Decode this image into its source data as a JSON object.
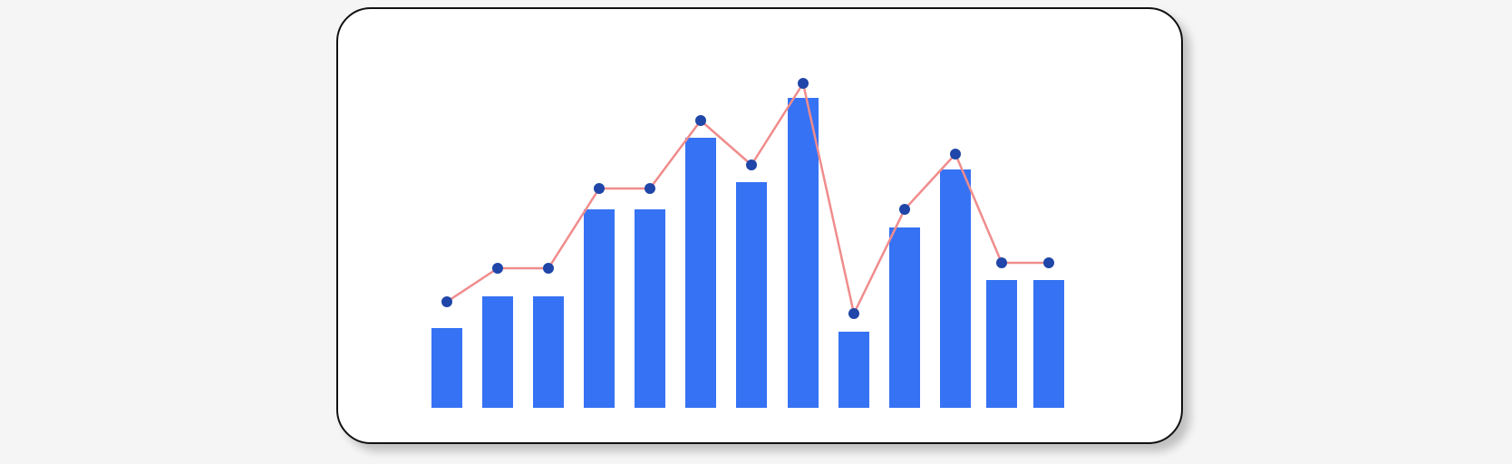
{
  "chart_data": {
    "type": "bar",
    "categories": [
      "",
      "",
      "",
      "",
      "",
      "",
      "",
      "",
      "",
      "",
      "",
      "",
      ""
    ],
    "series": [
      {
        "type": "bar",
        "values": [
          88,
          123,
          123,
          219,
          219,
          298,
          249,
          342,
          84,
          199,
          263,
          141,
          141
        ]
      },
      {
        "type": "line",
        "values": [
          117,
          154,
          154,
          242,
          242,
          317,
          268,
          358,
          104,
          219,
          280,
          160,
          160
        ]
      }
    ],
    "ylim": [
      0,
      400
    ],
    "grid": false,
    "legend": "none",
    "colors": {
      "bar": "#3672f4",
      "line": "#f08c8c",
      "marker": "#1f46a8"
    }
  }
}
